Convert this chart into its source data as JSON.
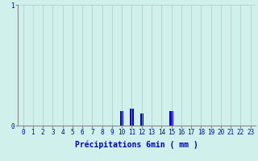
{
  "hours": [
    0,
    1,
    2,
    3,
    4,
    5,
    6,
    7,
    8,
    9,
    10,
    11,
    12,
    13,
    14,
    15,
    16,
    17,
    18,
    19,
    20,
    21,
    22,
    23
  ],
  "values": [
    0,
    0,
    0,
    0,
    0,
    0,
    0,
    0,
    0,
    0,
    0.12,
    0.14,
    0.1,
    0,
    0,
    0.12,
    0,
    0,
    0,
    0,
    0,
    0,
    0,
    0
  ],
  "bar_color": "#0000cc",
  "bg_color": "#d0f0ec",
  "plot_bg_color": "#d0f0ec",
  "grid_color": "#b0c8c4",
  "axis_color": "#888888",
  "text_color": "#0000cc",
  "xlabel": "Précipitations 6min ( mm )",
  "ylim": [
    0,
    1.0
  ],
  "yticks": [
    0,
    1
  ],
  "ytick_labels": [
    "0",
    "1"
  ],
  "xticks": [
    0,
    1,
    2,
    3,
    4,
    5,
    6,
    7,
    8,
    9,
    10,
    11,
    12,
    13,
    14,
    15,
    16,
    17,
    18,
    19,
    20,
    21,
    22,
    23
  ],
  "xlabel_fontsize": 7,
  "tick_fontsize": 5.5,
  "bar_width": 0.35
}
